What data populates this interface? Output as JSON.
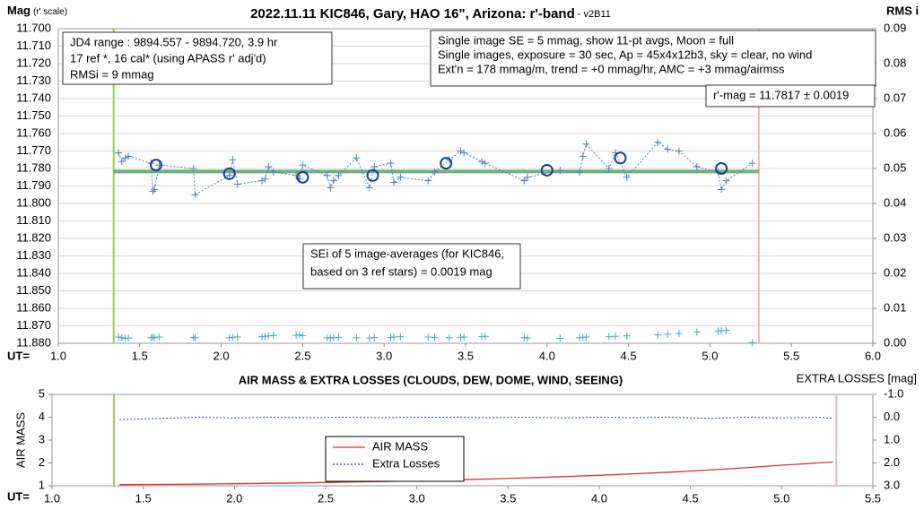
{
  "chart_data": [
    {
      "type": "line",
      "title": "2022.11.11 KIC846, Gary, HAO 16\", Arizona: r'-band",
      "subtitle": " - v2B11",
      "ylabel": "Mag",
      "ylabel_note": "(r' scale)",
      "y2label": "RMS i",
      "xlabel": "UT=",
      "xlim": [
        1.0,
        6.0
      ],
      "xticks": [
        {
          "value": 1.0,
          "label": "1.0"
        },
        1.5,
        {
          "value": 2.0,
          "label": "2.0"
        },
        2.5,
        {
          "value": 3.0,
          "label": "3.0"
        },
        3.5,
        {
          "value": 4.0,
          "label": "4.0"
        },
        4.5,
        {
          "value": 5.0,
          "label": "5.0"
        },
        5.5,
        {
          "value": 6.0,
          "label": "6.0"
        }
      ],
      "ylim": [
        11.7,
        11.88
      ],
      "y_inverted": true,
      "yticks": [
        {
          "value": 11.7,
          "label": "11.700"
        },
        {
          "value": 11.71,
          "label": "11.710"
        },
        {
          "value": 11.72,
          "label": "11.720"
        },
        {
          "value": 11.73,
          "label": "11.730"
        },
        {
          "value": 11.74,
          "label": "11.740"
        },
        {
          "value": 11.75,
          "label": "11.750"
        },
        {
          "value": 11.76,
          "label": "11.760"
        },
        {
          "value": 11.77,
          "label": "11.770"
        },
        {
          "value": 11.78,
          "label": "11.780"
        },
        {
          "value": 11.79,
          "label": "11.790"
        },
        {
          "value": 11.8,
          "label": "11.800"
        },
        {
          "value": 11.81,
          "label": "11.810"
        },
        {
          "value": 11.82,
          "label": "11.820"
        },
        {
          "value": 11.83,
          "label": "11.830"
        },
        {
          "value": 11.84,
          "label": "11.840"
        },
        {
          "value": 11.85,
          "label": "11.850"
        },
        {
          "value": 11.86,
          "label": "11.860"
        },
        {
          "value": 11.87,
          "label": "11.870"
        },
        {
          "value": 11.88,
          "label": "11.880"
        }
      ],
      "y2lim": [
        0,
        0.09
      ],
      "y2ticks": [
        {
          "value": 0,
          "label": "0.00"
        },
        0.01,
        0.02,
        0.03,
        0.04,
        0.05,
        0.06,
        0.07,
        0.08,
        0.09
      ],
      "grid": true,
      "vlines": [
        {
          "x": 1.34,
          "color": "#92d050"
        },
        {
          "x": 5.3,
          "color": "#f4b6b6"
        }
      ],
      "ref_line": {
        "x": [
          1.34,
          5.3
        ],
        "value": 11.7817,
        "color": "#5aa36a"
      },
      "series": [
        {
          "marker": "plus",
          "line": "dotted",
          "color": "#4f81bd",
          "x": [
            1.37,
            1.39,
            1.41,
            1.43,
            1.57,
            1.58,
            1.59,
            1.62,
            1.83,
            1.84,
            2.05,
            2.07,
            2.1,
            2.25,
            2.27,
            2.29,
            2.32,
            2.46,
            2.48,
            2.5,
            2.65,
            2.67,
            2.69,
            2.72,
            2.83,
            2.91,
            2.94,
            3.04,
            3.06,
            3.1,
            3.27,
            3.31,
            3.4,
            3.47,
            3.49,
            3.6,
            3.62,
            3.86,
            3.88,
            4.08,
            4.2,
            4.22,
            4.24,
            4.38,
            4.42,
            4.49,
            4.68,
            4.74,
            4.81,
            4.92,
            5.05,
            5.07,
            5.1,
            5.26
          ],
          "values": [
            11.771,
            11.776,
            11.774,
            11.773,
            11.777,
            11.793,
            11.792,
            11.778,
            11.78,
            11.795,
            11.784,
            11.775,
            11.789,
            11.787,
            11.786,
            11.779,
            11.782,
            11.784,
            11.786,
            11.778,
            11.784,
            11.791,
            11.787,
            11.784,
            11.774,
            11.791,
            11.779,
            11.777,
            11.788,
            11.785,
            11.787,
            11.782,
            11.775,
            11.77,
            11.771,
            11.776,
            11.777,
            11.787,
            11.785,
            11.781,
            11.782,
            11.773,
            11.766,
            11.78,
            11.771,
            11.785,
            11.765,
            11.769,
            11.77,
            11.779,
            11.782,
            11.792,
            11.787,
            11.777
          ]
        },
        {
          "marker": "circle",
          "line": "none",
          "color": "#1f3f8f",
          "x": [
            1.6,
            2.05,
            2.5,
            2.93,
            3.38,
            4.0,
            4.45,
            5.07
          ],
          "values": [
            11.778,
            11.783,
            11.785,
            11.784,
            11.777,
            11.781,
            11.774,
            11.78
          ]
        },
        {
          "marker": "plus",
          "line": "none",
          "color": "#4bacc6",
          "axis": "y2",
          "x": [
            1.37,
            1.39,
            1.41,
            1.43,
            1.57,
            1.58,
            1.59,
            1.62,
            1.83,
            1.84,
            2.05,
            2.07,
            2.1,
            2.25,
            2.27,
            2.29,
            2.32,
            2.46,
            2.48,
            2.5,
            2.65,
            2.67,
            2.69,
            2.72,
            2.83,
            2.91,
            2.94,
            3.04,
            3.06,
            3.1,
            3.27,
            3.31,
            3.4,
            3.47,
            3.49,
            3.6,
            3.62,
            3.86,
            3.88,
            4.08,
            4.2,
            4.22,
            4.24,
            4.38,
            4.42,
            4.49,
            4.68,
            4.74,
            4.81,
            4.92,
            5.05,
            5.07,
            5.1,
            5.26
          ],
          "values": [
            0.0018,
            0.0016,
            0.0014,
            0.0015,
            0.0016,
            0.0017,
            0.0016,
            0.0018,
            0.0017,
            0.0016,
            0.0016,
            0.0017,
            0.0018,
            0.0019,
            0.002,
            0.0021,
            0.0022,
            0.0023,
            0.0024,
            0.0022,
            0.0016,
            0.0015,
            0.0016,
            0.0017,
            0.0016,
            0.0015,
            0.0016,
            0.0017,
            0.0018,
            0.0019,
            0.0018,
            0.0017,
            0.0016,
            0.0017,
            0.0018,
            0.0019,
            0.002,
            0.0016,
            0.0015,
            0.0014,
            0.0016,
            0.0017,
            0.0018,
            0.0019,
            0.002,
            0.0021,
            0.0024,
            0.0026,
            0.0028,
            0.0032,
            0.0035,
            0.0036,
            0.0037,
            0.0002
          ]
        }
      ],
      "annotations": [
        [
          "JD4 range : 9894.557 - 9894.720,  3.9  hr",
          "17 ref *, 16 cal* (using APASS r' adj'd)",
          "RMSi = 9 mmag"
        ],
        [
          "Single image SE = 5 mmag, show  11-pt avgs, Moon = full",
          "Single images, exposure = 30 sec, Ap = 45x4x12b3, sky = clear, no wind",
          "Ext'n = 178 mmag/m, trend = +0  mmag/hr, AMC = +3 mmag/airmss"
        ],
        [
          "r'-mag = 11.7817 ± 0.0019"
        ],
        [
          "SEi of 5 image-averages (for KIC846,",
          "based on 3 ref stars) = 0.0019 mag"
        ]
      ]
    },
    {
      "type": "line",
      "title": "AIR MASS & EXTRA LOSSES (CLOUDS, DEW, DOME, WIND, SEEING)",
      "ylabel": "AIR MASS",
      "y2label": "EXTRA LOSSES [mag]",
      "xlabel": "UT=",
      "xlim": [
        1.0,
        5.5
      ],
      "xticks": [
        {
          "value": 1.0,
          "label": "1.0"
        },
        1.5,
        {
          "value": 2.0,
          "label": "2.0"
        },
        2.5,
        {
          "value": 3.0,
          "label": "3.0"
        },
        3.5,
        {
          "value": 4.0,
          "label": "4.0"
        },
        4.5,
        {
          "value": 5.0,
          "label": "5.0"
        },
        5.5
      ],
      "ylim": [
        1,
        5
      ],
      "yticks": [
        1,
        2,
        3,
        4,
        5
      ],
      "y2lim": [
        -1,
        3
      ],
      "y2_inverted": true,
      "y2ticks": [
        {
          "value": -1,
          "label": "-1.0"
        },
        {
          "value": 0,
          "label": "0.0"
        },
        {
          "value": 1,
          "label": "1.0"
        },
        {
          "value": 2,
          "label": "2.0"
        },
        {
          "value": 3,
          "label": "3.0"
        }
      ],
      "grid": false,
      "legend": "center",
      "vlines": [
        {
          "x": 1.34,
          "color": "#92d050"
        },
        {
          "x": 5.3,
          "color": "#f4b6b6"
        }
      ],
      "series": [
        {
          "name": "AIR MASS",
          "line": "solid",
          "color": "#e03030",
          "x": [
            1.37,
            1.6,
            1.8,
            2.0,
            2.2,
            2.4,
            2.6,
            2.8,
            3.0,
            3.2,
            3.4,
            3.6,
            3.8,
            4.0,
            4.2,
            4.4,
            4.6,
            4.8,
            5.0,
            5.2,
            5.28
          ],
          "values": [
            1.05,
            1.06,
            1.07,
            1.09,
            1.11,
            1.13,
            1.16,
            1.19,
            1.22,
            1.26,
            1.3,
            1.35,
            1.4,
            1.46,
            1.53,
            1.6,
            1.69,
            1.79,
            1.9,
            2.0,
            2.04
          ]
        },
        {
          "name": "Extra Losses",
          "line": "dotted",
          "color": "#2040c0",
          "axis": "y2",
          "x": [
            1.37,
            1.6,
            1.8,
            2.0,
            2.2,
            2.4,
            2.6,
            2.8,
            3.0,
            3.2,
            3.4,
            3.6,
            3.8,
            4.0,
            4.2,
            4.4,
            4.6,
            4.8,
            5.0,
            5.2,
            5.28
          ],
          "values": [
            0.1,
            0.05,
            0.0,
            0.03,
            0.0,
            0.02,
            0.0,
            0.02,
            0.0,
            0.0,
            0.02,
            0.0,
            0.03,
            0.0,
            0.02,
            0.0,
            0.05,
            0.0,
            0.03,
            0.0,
            0.05
          ]
        }
      ]
    }
  ]
}
